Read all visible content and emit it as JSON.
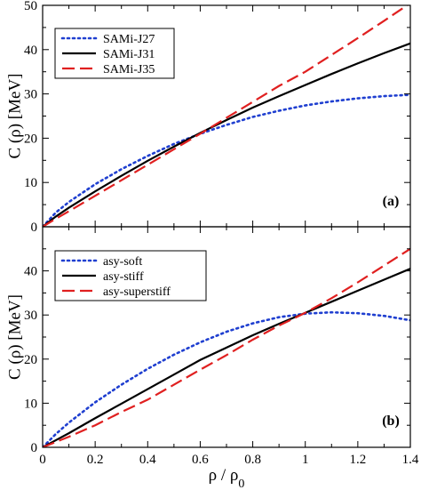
{
  "chart_data": [
    {
      "type": "line",
      "panel_label": "(a)",
      "xlim": [
        0,
        1.4
      ],
      "ylim": [
        0,
        50
      ],
      "xticks": [
        0,
        0.2,
        0.4,
        0.6,
        0.8,
        1.0,
        1.2,
        1.4
      ],
      "yticks": [
        0,
        10,
        20,
        30,
        40,
        50
      ],
      "ytick_labels": [
        "0",
        "10",
        "20",
        "30",
        "40",
        "50"
      ],
      "xlabel": "",
      "ylabel": "C (ρ) [MeV]",
      "legend_position": "top-left",
      "series": [
        {
          "name": "SAMi-J27",
          "style": "dotted",
          "color": "#1f3fd0",
          "x": [
            0,
            0.05,
            0.1,
            0.2,
            0.3,
            0.4,
            0.5,
            0.6,
            0.7,
            0.8,
            0.9,
            1.0,
            1.1,
            1.2,
            1.3,
            1.4
          ],
          "y": [
            0,
            3.2,
            5.6,
            9.6,
            13.0,
            16.0,
            18.7,
            21.0,
            23.0,
            24.8,
            26.2,
            27.4,
            28.3,
            29.0,
            29.5,
            29.8
          ]
        },
        {
          "name": "SAMi-J31",
          "style": "solid",
          "color": "#000000",
          "x": [
            0,
            0.05,
            0.1,
            0.2,
            0.3,
            0.4,
            0.5,
            0.6,
            0.7,
            0.8,
            0.9,
            1.0,
            1.1,
            1.2,
            1.3,
            1.4
          ],
          "y": [
            0,
            2.3,
            4.3,
            8.0,
            11.5,
            14.9,
            18.1,
            21.2,
            24.1,
            26.9,
            29.5,
            32.0,
            34.5,
            36.9,
            39.2,
            41.4
          ]
        },
        {
          "name": "SAMi-J35",
          "style": "dashed",
          "color": "#e02020",
          "x": [
            0,
            0.05,
            0.1,
            0.2,
            0.3,
            0.4,
            0.5,
            0.6,
            0.7,
            0.8,
            0.9,
            1.0,
            1.1,
            1.2,
            1.3,
            1.4
          ],
          "y": [
            0,
            1.8,
            3.5,
            7.0,
            10.5,
            14.0,
            17.5,
            21.0,
            24.6,
            28.2,
            31.8,
            35.0,
            38.8,
            42.6,
            46.5,
            50.5
          ]
        }
      ]
    },
    {
      "type": "line",
      "panel_label": "(b)",
      "xlim": [
        0,
        1.4
      ],
      "ylim": [
        0,
        50
      ],
      "xticks": [
        0,
        0.2,
        0.4,
        0.6,
        0.8,
        1.0,
        1.2,
        1.4
      ],
      "xtick_labels": [
        "0",
        "0.2",
        "0.4",
        "0.6",
        "0.8",
        "1",
        "1.2",
        "1.4"
      ],
      "yticks": [
        0,
        10,
        20,
        30,
        40
      ],
      "ytick_labels": [
        "0",
        "10",
        "20",
        "30",
        "40"
      ],
      "xlabel": "ρ / ρ0",
      "ylabel": "C (ρ) [MeV]",
      "legend_position": "top-left",
      "series": [
        {
          "name": "asy-soft",
          "style": "dotted",
          "color": "#1f3fd0",
          "x": [
            0,
            0.05,
            0.1,
            0.2,
            0.3,
            0.4,
            0.5,
            0.6,
            0.7,
            0.8,
            0.9,
            1.0,
            1.1,
            1.2,
            1.3,
            1.4
          ],
          "y": [
            0,
            3.0,
            5.6,
            10.2,
            14.2,
            17.8,
            21.0,
            23.8,
            26.2,
            28.1,
            29.5,
            30.3,
            30.6,
            30.4,
            29.8,
            28.8
          ]
        },
        {
          "name": "asy-stiff",
          "style": "solid",
          "color": "#000000",
          "x": [
            0,
            0.05,
            0.1,
            0.2,
            0.3,
            0.4,
            0.5,
            0.6,
            0.7,
            0.8,
            0.9,
            1.0,
            1.1,
            1.2,
            1.3,
            1.4
          ],
          "y": [
            0,
            1.6,
            3.2,
            6.6,
            9.9,
            13.2,
            16.5,
            19.8,
            22.6,
            25.4,
            28.0,
            30.5,
            33.0,
            35.5,
            38.0,
            40.5
          ]
        },
        {
          "name": "asy-superstiff",
          "style": "dashed",
          "color": "#e02020",
          "x": [
            0,
            0.05,
            0.1,
            0.2,
            0.3,
            0.4,
            0.5,
            0.6,
            0.7,
            0.8,
            0.9,
            1.0,
            1.1,
            1.2,
            1.3,
            1.4
          ],
          "y": [
            0,
            1.2,
            2.4,
            5.0,
            8.0,
            10.8,
            14.2,
            17.6,
            20.9,
            24.4,
            27.6,
            30.5,
            33.8,
            37.4,
            41.2,
            45.0
          ]
        }
      ]
    }
  ]
}
